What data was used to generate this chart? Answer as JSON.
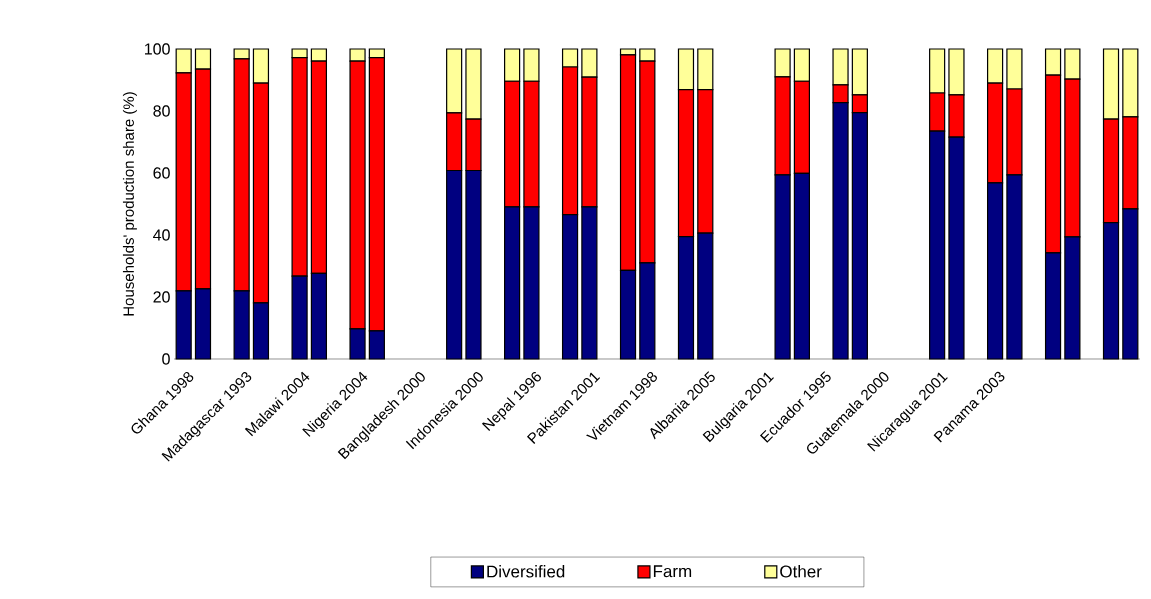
{
  "chart_data": {
    "type": "bar",
    "stacked": true,
    "ylabel": "Households' production share (%)",
    "categories": [
      "Ghana 1998",
      null,
      null,
      "Madagascar 1993",
      null,
      null,
      "Malawi 2004",
      null,
      null,
      "Nigeria 2004",
      null,
      null,
      "Bangladesh 2000",
      null,
      null,
      "Indonesia 2000",
      null,
      null,
      "Nepal 1996",
      null,
      null,
      "Pakistan 2001",
      null,
      null,
      "Vietnam 1998",
      null,
      null,
      "Albania 2005",
      null,
      null,
      "Bulgaria 2001",
      null,
      null,
      "Ecuador 1995",
      null,
      null,
      "Guatemala 2000",
      null,
      null,
      "Nicaragua 2001",
      null,
      null,
      "Panama 2003",
      null,
      null,
      null,
      null,
      null,
      null,
      null
    ],
    "series": [
      {
        "name": "Diversified",
        "color": "#000080",
        "values": [
          22.0,
          22.6,
          null,
          22.0,
          18.1,
          null,
          26.7,
          27.6,
          null,
          9.7,
          9.1,
          null,
          null,
          null,
          60.8,
          60.8,
          null,
          49.1,
          49.1,
          null,
          46.6,
          49.1,
          null,
          28.6,
          31.0,
          null,
          39.5,
          40.6,
          null,
          null,
          null,
          59.4,
          59.9,
          null,
          82.7,
          79.5,
          null,
          null,
          null,
          73.5,
          71.6,
          null,
          56.8,
          59.4,
          null,
          34.2,
          39.4,
          null,
          44.0,
          48.4
        ]
      },
      {
        "name": "Farm",
        "color": "#ff0000",
        "values": [
          70.3,
          70.9,
          null,
          74.8,
          70.9,
          null,
          70.5,
          68.5,
          null,
          86.4,
          88.1,
          null,
          null,
          null,
          18.6,
          16.6,
          null,
          40.5,
          40.5,
          null,
          47.6,
          41.8,
          null,
          69.5,
          65.1,
          null,
          47.4,
          46.3,
          null,
          null,
          null,
          31.6,
          29.7,
          null,
          5.7,
          5.7,
          null,
          null,
          null,
          12.3,
          13.6,
          null,
          32.2,
          27.7,
          null,
          57.4,
          50.9,
          null,
          33.4,
          29.7
        ]
      },
      {
        "name": "Other",
        "color": "#ffff99",
        "values": [
          7.7,
          6.5,
          null,
          3.2,
          11.0,
          null,
          2.8,
          3.9,
          null,
          3.9,
          2.8,
          null,
          null,
          null,
          20.6,
          22.6,
          null,
          10.4,
          10.4,
          null,
          5.8,
          9.1,
          null,
          1.9,
          3.9,
          null,
          13.1,
          13.1,
          null,
          null,
          null,
          9.0,
          10.4,
          null,
          11.6,
          14.8,
          null,
          null,
          null,
          14.2,
          14.8,
          null,
          11.0,
          12.9,
          null,
          8.4,
          9.7,
          null,
          22.6,
          21.9
        ]
      }
    ],
    "ylim": [
      0,
      100
    ],
    "yticks": [
      0,
      20,
      40,
      60,
      80,
      100
    ],
    "legend": "bottom"
  }
}
